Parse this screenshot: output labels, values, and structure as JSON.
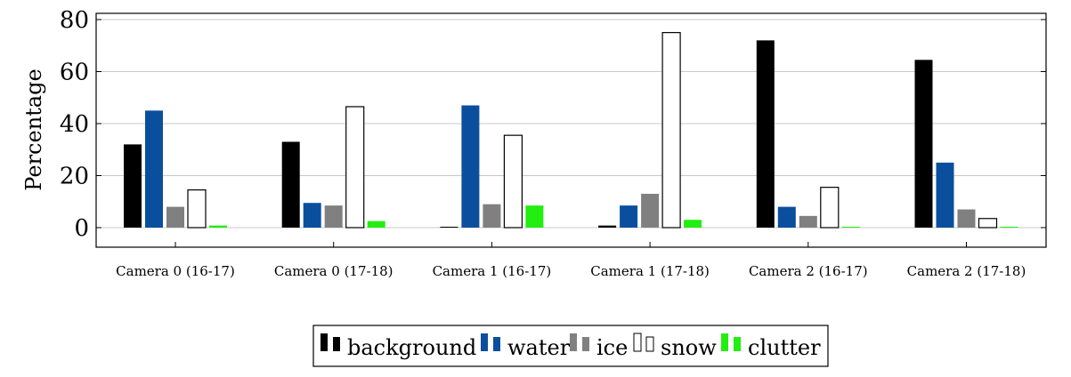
{
  "chart_data": {
    "type": "bar",
    "ylabel": "Percentage",
    "xlabel": "",
    "ylim": [
      -8,
      82
    ],
    "yticks": [
      "0",
      "20",
      "40",
      "60",
      "80"
    ],
    "grid": "horizontal",
    "legend_position": "bottom-center",
    "categories": [
      "Camera 0 (16-17)",
      "Camera 0 (17-18)",
      "Camera 1 (16-17)",
      "Camera 1 (17-18)",
      "Camera 2 (16-17)",
      "Camera 2 (17-18)"
    ],
    "series": [
      {
        "name": "background",
        "color": "#000000",
        "values": [
          32,
          33,
          0.3,
          0.8,
          72,
          64.5
        ]
      },
      {
        "name": "water",
        "color": "#0a4f9e",
        "values": [
          45,
          9.5,
          47,
          8.5,
          8,
          25
        ]
      },
      {
        "name": "ice",
        "color": "#808080",
        "values": [
          8,
          8.5,
          9,
          13,
          4.5,
          7
        ]
      },
      {
        "name": "snow",
        "color": "#ffffff",
        "values": [
          14.5,
          46.5,
          35.5,
          75,
          15.5,
          3.5
        ]
      },
      {
        "name": "clutter",
        "color": "#22ee11",
        "values": [
          0.8,
          2.5,
          8.5,
          3,
          0.3,
          0.3
        ]
      }
    ]
  }
}
